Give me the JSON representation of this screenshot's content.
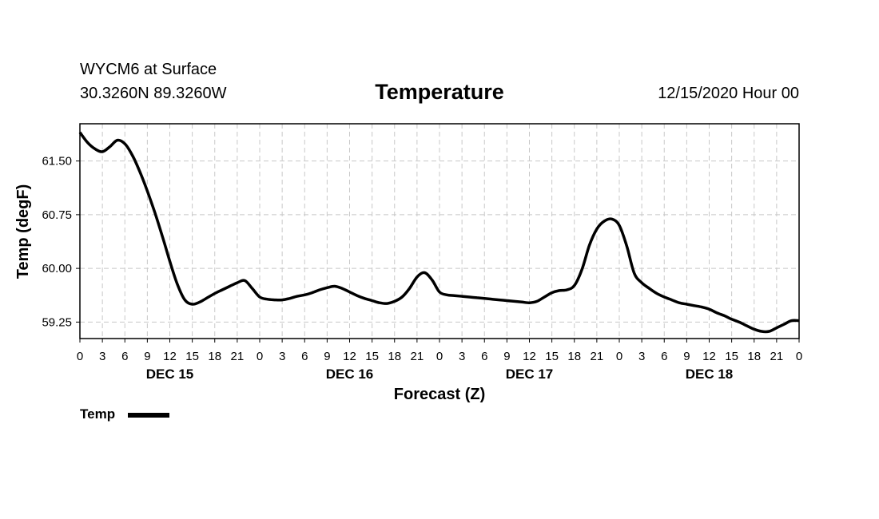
{
  "header": {
    "station": "WYCM6 at Surface",
    "coords": "30.3260N 89.3260W",
    "title": "Temperature",
    "valid_time": "12/15/2020 Hour 00"
  },
  "legend": {
    "label": "Temp",
    "color": "#000000"
  },
  "chart_data": {
    "type": "line",
    "title": "Temperature",
    "xlabel": "Forecast (Z)",
    "ylabel": "Temp (degF)",
    "xlim": [
      0,
      96
    ],
    "ylim": [
      59.02,
      62.02
    ],
    "grid": true,
    "yticks": [
      61.5,
      60.75,
      60.0,
      59.25
    ],
    "ytick_labels": [
      "61.50",
      "60.75",
      "60.00",
      "59.25"
    ],
    "xtick_labels": [
      "0",
      "3",
      "6",
      "9",
      "12",
      "15",
      "18",
      "21",
      "0",
      "3",
      "6",
      "9",
      "12",
      "15",
      "18",
      "21",
      "0",
      "3",
      "6",
      "9",
      "12",
      "15",
      "18",
      "21",
      "0",
      "3",
      "6",
      "9",
      "12",
      "15",
      "18",
      "21",
      "0"
    ],
    "day_labels": [
      {
        "hour": 12,
        "label": "DEC 15"
      },
      {
        "hour": 36,
        "label": "DEC 16"
      },
      {
        "hour": 60,
        "label": "DEC 17"
      },
      {
        "hour": 84,
        "label": "DEC 18"
      }
    ],
    "series": [
      {
        "name": "Temp",
        "color": "#000000",
        "x": [
          0,
          1,
          2,
          3,
          4,
          5,
          6,
          7,
          8,
          9,
          10,
          11,
          12,
          13,
          14,
          15,
          16,
          17,
          18,
          19,
          20,
          21,
          22,
          23,
          24,
          25,
          26,
          27,
          28,
          29,
          30,
          31,
          32,
          33,
          34,
          35,
          36,
          37,
          38,
          39,
          40,
          41,
          42,
          43,
          44,
          45,
          46,
          47,
          48,
          49,
          50,
          51,
          52,
          53,
          54,
          55,
          56,
          57,
          58,
          59,
          60,
          61,
          62,
          63,
          64,
          65,
          66,
          67,
          68,
          69,
          70,
          71,
          72,
          73,
          74,
          75,
          76,
          77,
          78,
          79,
          80,
          81,
          82,
          83,
          84,
          85,
          86,
          87,
          88,
          89,
          90,
          91,
          92,
          93,
          94,
          95,
          96
        ],
        "values": [
          61.9,
          61.76,
          61.67,
          61.63,
          61.7,
          61.79,
          61.74,
          61.58,
          61.35,
          61.08,
          60.78,
          60.45,
          60.1,
          59.78,
          59.56,
          59.5,
          59.53,
          59.59,
          59.65,
          59.7,
          59.75,
          59.8,
          59.83,
          59.72,
          59.6,
          59.57,
          59.56,
          59.56,
          59.58,
          59.61,
          59.63,
          59.66,
          59.7,
          59.73,
          59.75,
          59.72,
          59.67,
          59.62,
          59.58,
          59.55,
          59.52,
          59.51,
          59.54,
          59.6,
          59.72,
          59.88,
          59.94,
          59.84,
          59.67,
          59.63,
          59.62,
          59.61,
          59.6,
          59.59,
          59.58,
          59.57,
          59.56,
          59.55,
          59.54,
          59.53,
          59.52,
          59.54,
          59.6,
          59.66,
          59.69,
          59.7,
          59.76,
          59.98,
          60.32,
          60.55,
          60.66,
          60.69,
          60.6,
          60.31,
          59.93,
          59.8,
          59.72,
          59.65,
          59.6,
          59.56,
          59.52,
          59.5,
          59.48,
          59.46,
          59.43,
          59.38,
          59.34,
          59.29,
          59.25,
          59.2,
          59.15,
          59.12,
          59.12,
          59.17,
          59.22,
          59.27,
          59.27
        ]
      }
    ]
  },
  "chart_data_note_ignore": null
}
